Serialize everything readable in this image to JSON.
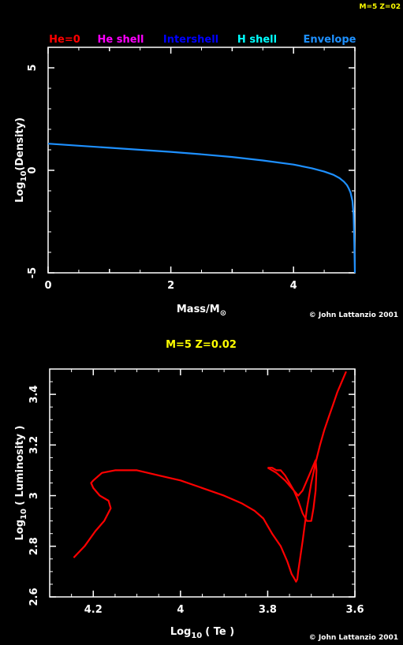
{
  "corner_label": "M=5 Z=02",
  "chart_data": [
    {
      "type": "line",
      "legend": [
        {
          "label": "He=0",
          "color": "#ff0000"
        },
        {
          "label": "He shell",
          "color": "#ff00ff"
        },
        {
          "label": "Intershell",
          "color": "#0000ff"
        },
        {
          "label": "H shell",
          "color": "#00ffff"
        },
        {
          "label": "Envelope",
          "color": "#1e90ff"
        }
      ],
      "xlabel": "Mass/M",
      "xlabel_sub": "⊙",
      "ylabel": "Log",
      "ylabel_sub": "10",
      "ylabel_rest": "(Density)",
      "xlim": [
        0,
        5
      ],
      "ylim": [
        -5,
        6
      ],
      "xticks": [
        0,
        2,
        4
      ],
      "yticks": [
        -5,
        0,
        5
      ],
      "xticks_minor": [
        1,
        3,
        5
      ],
      "series": [
        {
          "color": "#1e90ff",
          "x": [
            0,
            0.5,
            1.0,
            1.5,
            2.0,
            2.5,
            3.0,
            3.5,
            4.0,
            4.3,
            4.5,
            4.65,
            4.75,
            4.82,
            4.87,
            4.9,
            4.93,
            4.96,
            4.98,
            4.99,
            5.0
          ],
          "y": [
            1.3,
            1.2,
            1.1,
            1.0,
            0.9,
            0.78,
            0.65,
            0.48,
            0.28,
            0.1,
            -0.06,
            -0.22,
            -0.38,
            -0.55,
            -0.72,
            -0.88,
            -1.1,
            -1.5,
            -2.2,
            -3.5,
            -5.0
          ]
        }
      ],
      "copyright": "© John Lattanzio 2001"
    },
    {
      "type": "line",
      "title": "M=5 Z=0.02",
      "xlabel": "Log",
      "xlabel_sub": "10",
      "xlabel_rest": "( Te )",
      "ylabel": "Log",
      "ylabel_sub": "10",
      "ylabel_rest": "( Luminosity )",
      "xlim": [
        4.3,
        3.6
      ],
      "ylim": [
        2.6,
        3.5
      ],
      "xticks": [
        4.2,
        4.0,
        3.8,
        3.6
      ],
      "xtick_labels": [
        "4.2",
        "4",
        "3.8",
        "3.6"
      ],
      "yticks": [
        2.6,
        2.8,
        3.0,
        3.2,
        3.4
      ],
      "ytick_labels": [
        "2.6",
        "2.8",
        "3",
        "3.2",
        "3.4"
      ],
      "series": [
        {
          "color": "#ff0000",
          "x": [
            4.245,
            4.22,
            4.195,
            4.175,
            4.16,
            4.165,
            4.185,
            4.2,
            4.205,
            4.2,
            4.18,
            4.15,
            4.1,
            4.05,
            4.0,
            3.95,
            3.9,
            3.86,
            3.83,
            3.81,
            3.8,
            3.79,
            3.77,
            3.755,
            3.745,
            3.738,
            3.735,
            3.732,
            3.73,
            3.725,
            3.72,
            3.71,
            3.7,
            3.69,
            3.68,
            3.67,
            3.66,
            3.65,
            3.64,
            3.63,
            3.62
          ],
          "y": [
            2.755,
            2.8,
            2.86,
            2.9,
            2.95,
            2.98,
            3.0,
            3.03,
            3.05,
            3.06,
            3.09,
            3.1,
            3.1,
            3.08,
            3.06,
            3.03,
            3.0,
            2.97,
            2.94,
            2.91,
            2.88,
            2.85,
            2.8,
            2.74,
            2.69,
            2.67,
            2.66,
            2.67,
            2.7,
            2.76,
            2.82,
            2.95,
            3.05,
            3.13,
            3.2,
            3.26,
            3.31,
            3.36,
            3.41,
            3.45,
            3.49
          ]
        },
        {
          "color": "#ff0000",
          "x": [
            3.8,
            3.78,
            3.76,
            3.74,
            3.73,
            3.72,
            3.71,
            3.7,
            3.695,
            3.69,
            3.688,
            3.69,
            3.7,
            3.71,
            3.72,
            3.73,
            3.74,
            3.75,
            3.76,
            3.77,
            3.78,
            3.79,
            3.8
          ],
          "y": [
            3.11,
            3.09,
            3.06,
            3.02,
            2.98,
            2.93,
            2.9,
            2.9,
            2.95,
            3.02,
            3.1,
            3.14,
            3.1,
            3.06,
            3.02,
            3.0,
            3.02,
            3.05,
            3.08,
            3.1,
            3.1,
            3.11,
            3.11
          ]
        }
      ],
      "copyright": "© John Lattanzio 2001"
    }
  ]
}
